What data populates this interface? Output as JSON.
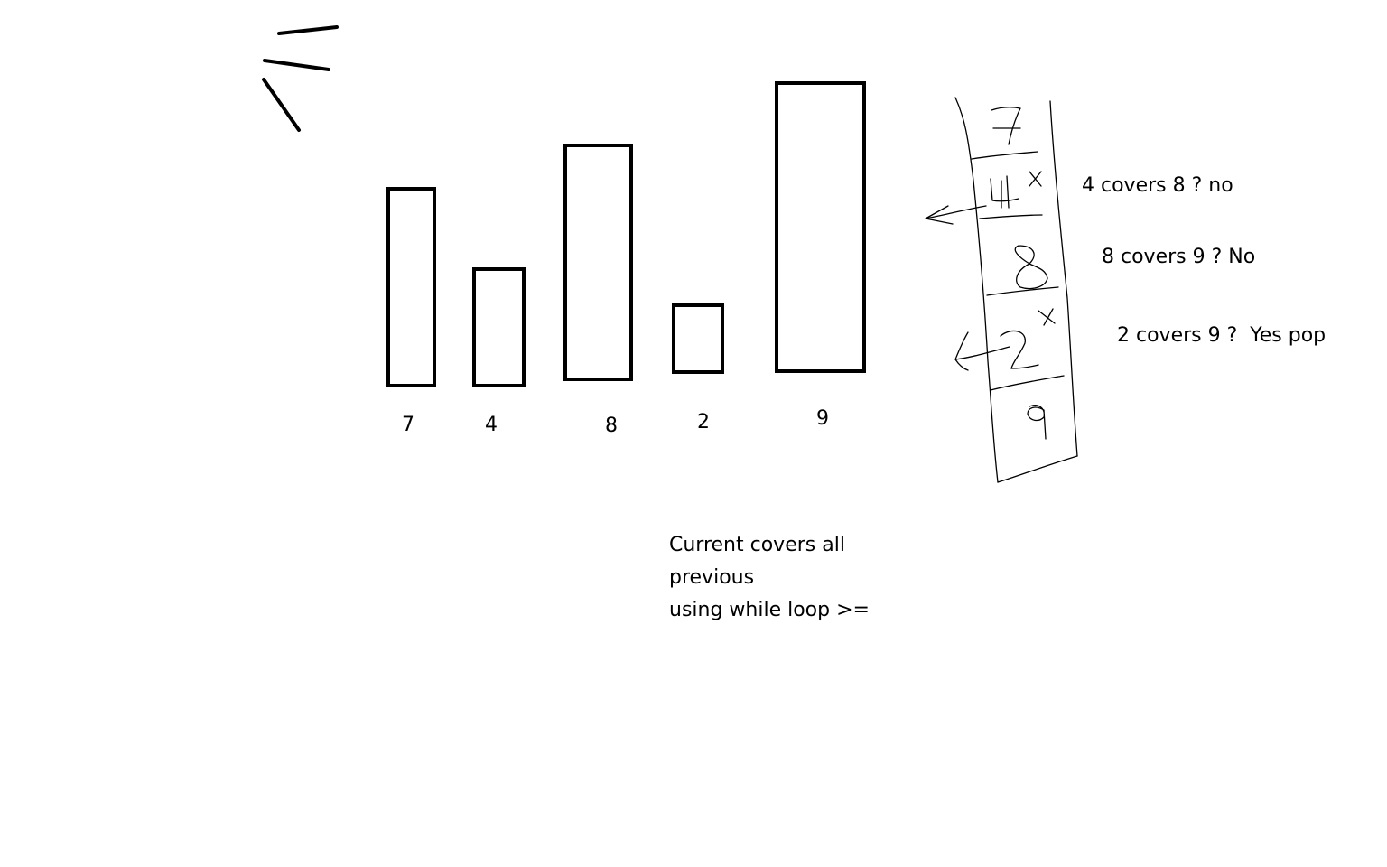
{
  "bars": [
    {
      "label": "7",
      "value": 7
    },
    {
      "label": "4",
      "value": 4
    },
    {
      "label": "8",
      "value": 8
    },
    {
      "label": "2",
      "value": 2
    },
    {
      "label": "9",
      "value": 9
    }
  ],
  "stack": {
    "cells": [
      "7",
      "4",
      "8",
      "2",
      "9"
    ],
    "marks": [
      "x",
      "x"
    ]
  },
  "annotations": [
    "4 covers 8 ? no",
    "8 covers 9 ? No",
    "2 covers 9 ?  Yes pop"
  ],
  "note": {
    "line1": "Current covers all",
    "line2": "previous",
    "line3": "using while loop >="
  },
  "colors": {
    "ink": "#000000",
    "background": "#ffffff"
  }
}
